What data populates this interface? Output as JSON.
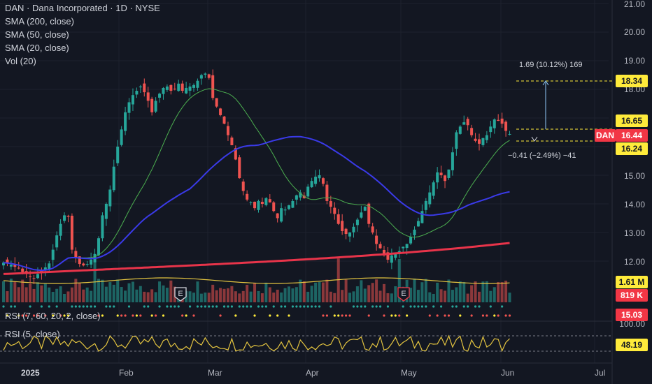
{
  "header": {
    "symbol_line": "DAN · Dana Incorporated · 1D · NYSE",
    "sma200": "SMA (200, close)",
    "sma50": "SMA (50, close)",
    "sma20": "SMA (20, close)",
    "vol": "Vol (20)"
  },
  "rsi_legend": "RSI (5, close)",
  "sentiment_legend": "RSI (7, 60, 20, 2, close)",
  "price_axis": [
    "21.00",
    "20.00",
    "19.00",
    "18.00",
    "15.00",
    "14.00",
    "13.00",
    "12.00"
  ],
  "rsi_axis": [
    "100.00"
  ],
  "tags": {
    "target": "18.34",
    "upper": "16.65",
    "ticker": "DAN",
    "last": "16.44",
    "lower": "16.24",
    "vol_avg": "1.61 M",
    "vol": "819 K",
    "sentiment": "15.03",
    "rsi": "48.19"
  },
  "measure": {
    "up_label": "1.69 (10.12%) 169",
    "down_label": "−0.41 (−2.49%) −41"
  },
  "earnings_marker": "E",
  "x_labels": [
    "2025",
    "Feb",
    "Mar",
    "Apr",
    "May",
    "Jun",
    "Jul"
  ],
  "colors": {
    "background": "#131722",
    "up": "#26a69a",
    "down": "#ef5350",
    "sma200": "#e8344a",
    "sma50": "#3a3ae8",
    "sma20": "#4caf50",
    "vol_ma": "#e3c440",
    "rsi": "#e3c440",
    "tag_yellow": "#ffeb3b",
    "tag_red": "#f23645"
  },
  "chart_data": {
    "type": "candlestick",
    "symbol": "DAN",
    "ylim": [
      11.0,
      21.0
    ],
    "closes": [
      11.95,
      11.92,
      11.88,
      11.8,
      11.75,
      11.62,
      11.55,
      11.45,
      11.4,
      11.55,
      11.6,
      11.78,
      11.92,
      12.4,
      12.9,
      13.3,
      13.6,
      13.55,
      12.4,
      12.1,
      11.9,
      11.85,
      11.9,
      12.05,
      12.25,
      12.8,
      13.6,
      14.0,
      14.5,
      15.3,
      16.0,
      16.6,
      17.2,
      17.55,
      17.8,
      17.95,
      18.1,
      17.9,
      17.6,
      17.2,
      17.6,
      17.85,
      18.05,
      18.1,
      17.95,
      18.0,
      18.2,
      17.95,
      18.05,
      18.1,
      18.15,
      18.3,
      18.5,
      18.55,
      18.4,
      17.7,
      17.4,
      17.1,
      16.8,
      16.4,
      16.05,
      15.55,
      14.9,
      14.45,
      14.15,
      14.05,
      13.85,
      14.1,
      14.0,
      14.2,
      14.05,
      13.75,
      13.5,
      13.85,
      13.8,
      13.95,
      14.1,
      14.3,
      14.4,
      14.2,
      14.6,
      14.8,
      14.95,
      15.0,
      14.7,
      14.1,
      13.9,
      13.65,
      13.3,
      13.05,
      12.95,
      13.0,
      13.2,
      13.45,
      13.7,
      13.9,
      13.3,
      13.0,
      12.6,
      12.45,
      12.2,
      12.05,
      12.2,
      12.25,
      12.35,
      12.5,
      12.6,
      12.85,
      13.1,
      13.4,
      13.75,
      14.1,
      14.4,
      14.75,
      15.1,
      15.0,
      14.8,
      15.2,
      15.8,
      16.5,
      16.7,
      16.85,
      16.75,
      16.4,
      16.2,
      16.1,
      16.3,
      16.4,
      16.7,
      16.95,
      16.9,
      16.8,
      16.55,
      16.44
    ],
    "earnings_dates": [
      "Feb 19",
      "Apr 30"
    ]
  }
}
